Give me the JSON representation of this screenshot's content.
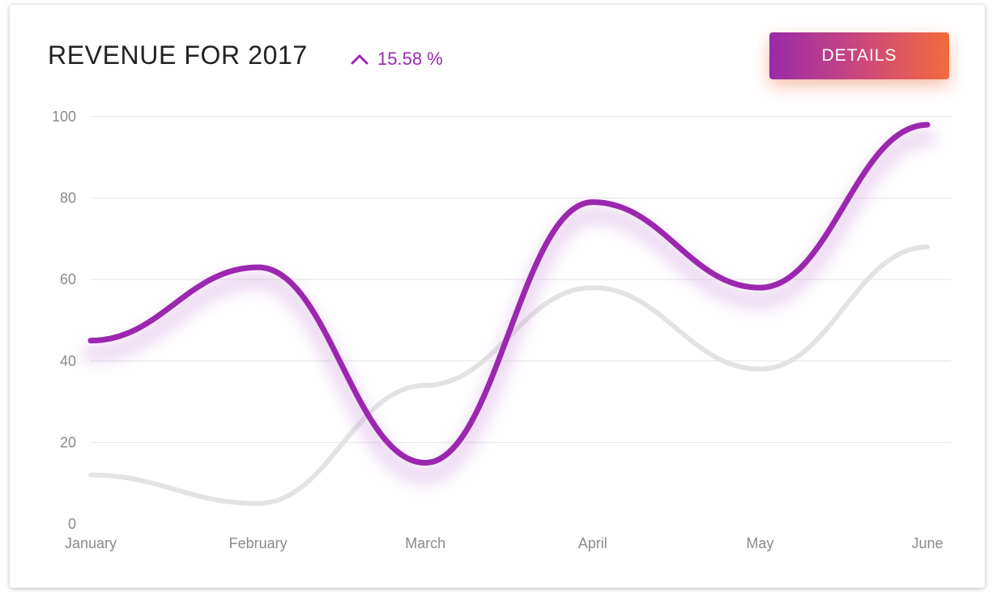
{
  "header": {
    "title": "REVENUE FOR 2017",
    "change_icon": "chevron-up-icon",
    "change_value": "15.58 %",
    "details_label": "DETAILS"
  },
  "colors": {
    "accent": "#9b27af",
    "secondary_line": "#e3e3e3",
    "button_gradient_start": "#9a2aa8",
    "button_gradient_end": "#f26b3c",
    "grid": "#e6e6e6"
  },
  "chart_data": {
    "type": "line",
    "title": "REVENUE FOR 2017",
    "categories": [
      "January",
      "February",
      "March",
      "April",
      "May",
      "June"
    ],
    "series": [
      {
        "values": [
          45,
          63,
          15,
          79,
          58,
          98
        ]
      },
      {
        "values": [
          12,
          5,
          34,
          58,
          38,
          68
        ]
      }
    ],
    "ylim": [
      0,
      100
    ],
    "yticks": [
      0,
      20,
      40,
      60,
      80,
      100
    ],
    "grid": true,
    "smooth": true
  }
}
